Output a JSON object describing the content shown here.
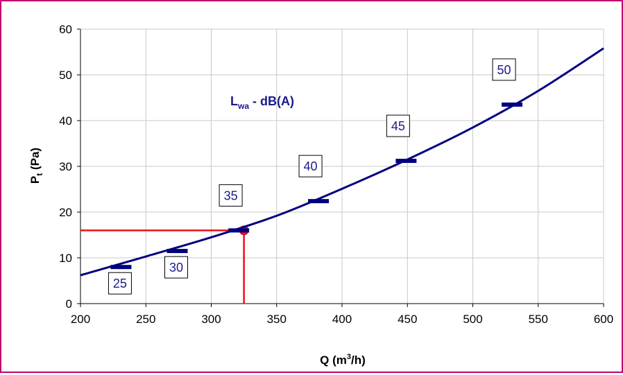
{
  "chart_data": {
    "type": "line",
    "title": "",
    "xlabel": "Q (m³/h)",
    "xlabel_parts": {
      "base": "Q (m",
      "sup": "3",
      "tail": "/h)"
    },
    "ylabel": "Pt (Pa)",
    "ylabel_parts": {
      "base": "P",
      "sub": "t",
      "tail": " (Pa)"
    },
    "annotation": {
      "base": "L",
      "sub": "wa",
      "tail": " - dB(A)"
    },
    "xlim": [
      200,
      600
    ],
    "ylim": [
      0,
      60
    ],
    "x_ticks": [
      200,
      250,
      300,
      350,
      400,
      450,
      500,
      550,
      600
    ],
    "y_ticks": [
      0,
      10,
      20,
      30,
      40,
      50,
      60
    ],
    "grid": true,
    "series": [
      {
        "values_x": [
          200,
          250,
          300,
          350,
          400,
          450,
          500,
          550,
          600
        ],
        "values_y": [
          6.2,
          10.3,
          14.5,
          19.2,
          25.1,
          31.5,
          38.5,
          46.5,
          55.8
        ],
        "color": "#00007f"
      }
    ],
    "markers": [
      {
        "label": "25",
        "x": 231,
        "y": 8.0
      },
      {
        "label": "30",
        "x": 274,
        "y": 11.5
      },
      {
        "label": "35",
        "x": 321,
        "y": 16.0
      },
      {
        "label": "40",
        "x": 382,
        "y": 22.4
      },
      {
        "label": "45",
        "x": 449,
        "y": 31.2
      },
      {
        "label": "50",
        "x": 530,
        "y": 43.5
      }
    ],
    "operating_point": {
      "x": 325,
      "y": 16,
      "color": "#e8101a"
    },
    "colors": {
      "curve": "#00007f",
      "marker": "#00007f",
      "guide": "#e8101a",
      "frame": "#c0006e",
      "label_text": "#1a1a8c"
    }
  }
}
